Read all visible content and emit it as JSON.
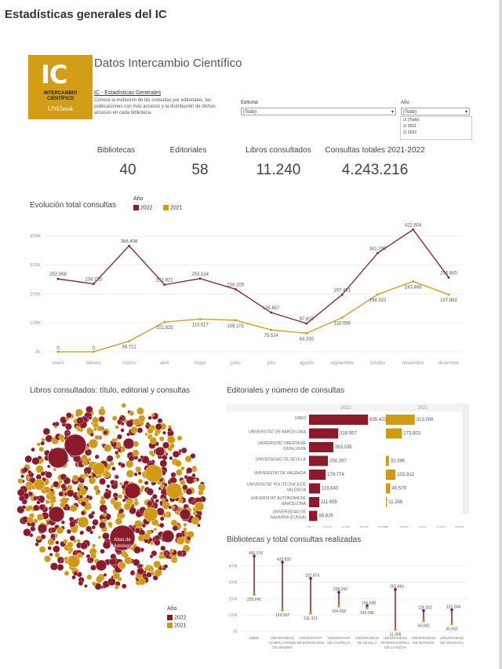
{
  "page_title": "Estadísticas generales del IC",
  "logo": {
    "big": "IC",
    "line1": "INTERCAMBIO",
    "line2": "CIENTÍFICO",
    "line3": "UNEbook"
  },
  "header": {
    "title": "Datos Intercambio Científico",
    "subtitle": "IC - Estadísticas Generales",
    "description": "Conoce la evolución de las consultas por editoriales, las publicaciones con más accesos y la distribución de dichos accesos en cada biblioteca."
  },
  "filters": {
    "editorial_label": "Editorial",
    "editorial_value": "(Todo)",
    "year_label": "Año",
    "year_value": "(Todo)",
    "year_options": [
      "(Todo)",
      "2021",
      "2022"
    ]
  },
  "kpis": [
    {
      "label": "Bibliotecas",
      "value": "40"
    },
    {
      "label": "Editoriales",
      "value": "58"
    },
    {
      "label": "Libros consultados",
      "value": "11.240"
    },
    {
      "label": "Consultas totales 2021-2022",
      "value": "4.243.216"
    }
  ],
  "colors": {
    "y2022": "#8b1a2b",
    "y2021": "#d09a14",
    "grid": "#eeeeee"
  },
  "line_chart": {
    "title": "Evolución total consultas",
    "legend_title": "Año",
    "legend": [
      "2022",
      "2021"
    ],
    "chart_data": {
      "type": "line",
      "categories": [
        "enero",
        "febrero",
        "marzo",
        "abril",
        "mayo",
        "junio",
        "julio",
        "agosto",
        "septiembre",
        "octubre",
        "noviembre",
        "diciembre"
      ],
      "yticks": [
        "0K",
        "100K",
        "200K",
        "300K",
        "400K"
      ],
      "ylim": [
        0,
        440000
      ],
      "series": [
        {
          "name": "2022",
          "values": [
            252068,
            234735,
            366408,
            231921,
            253124,
            216205,
            135657,
            97815,
            197401,
            341196,
            422604,
            256845
          ],
          "labels": [
            "252.068",
            "234.735",
            "366.408",
            "231.921",
            "253.124",
            "216.205",
            "135.657",
            "97.815",
            "197.401",
            "341.196",
            "422.604",
            "256.845"
          ]
        },
        {
          "name": "2021",
          "values": [
            0,
            0,
            36721,
            102925,
            113017,
            109101,
            75524,
            64330,
            118056,
            198322,
            243466,
            197882
          ],
          "labels": [
            "0",
            "0",
            "36.721",
            "102.925",
            "113.017",
            "109.101",
            "75.524",
            "64.330",
            "118.056",
            "198.322",
            "243.466",
            "197.882"
          ]
        }
      ]
    }
  },
  "bubble_chart": {
    "title": "Libros consultados: título, editorial y consultas",
    "highlight_label_1": "Atlas de",
    "highlight_label_2": "Histología",
    "legend_title": "Año",
    "legend": [
      "2022",
      "2021"
    ]
  },
  "bar_chart": {
    "title": "Editoriales y número de consultas",
    "col_2022": "2022",
    "col_2021": "2021",
    "chart_data": {
      "type": "bar",
      "categories": [
        "UNED",
        "UNIVERSITAT DE BARCELONA",
        "UNIVERSITAT OBERTA DE CATALUNYA",
        "UNIVERSIDAD DE SEVILLA",
        "UNIVERSITAT DE VALÈNCIA",
        "UNIVERSITAT POLITÈCNICA DE VALÈNCIA",
        "UNIVERSITAT AUTÒNOMA DE BARCELONA",
        "UNIVERSIDAD DE NAVARRA (EUNSA)"
      ],
      "series": [
        {
          "name": "2022",
          "values": [
            639423,
            316957,
            263335,
            204287,
            179774,
            119640,
            111655,
            88826
          ],
          "labels": [
            "639.423",
            "316.957",
            "263.335",
            "204.287",
            "179.774",
            "119.640",
            "111.655",
            "88.826"
          ]
        },
        {
          "name": "2021",
          "values": [
            313008,
            173803,
            0,
            32386,
            103912,
            46579,
            11286,
            0
          ],
          "labels": [
            "313.008",
            "173.803",
            "",
            "32.386",
            "103.912",
            "46.579",
            "11.286",
            ""
          ]
        }
      ],
      "xticks_2022": [
        "0K",
        "200K",
        "400K",
        "600K",
        "800K"
      ],
      "xticks_2021": [
        "0K",
        "200K",
        "400K",
        "600K",
        "800K"
      ]
    }
  },
  "dumbbell_chart": {
    "title": "Bibliotecas y total consultas realizadas",
    "chart_data": {
      "type": "bar",
      "categories": [
        "UNED",
        "UNIVERSIDAD COMPLUTENSE DE MADRID",
        "UNIVERSITAT DE BARCELONA",
        "UNIVERSITAT DE VALÈNCIA",
        "UNIVERSIDAD DE SEVILLA",
        "UNIVERSIDAD INTERNACIONAL DE LA RIOJA",
        "UNIVERSIDAD DE BURGOS",
        "UNIVERSIDAD DE GRANADA"
      ],
      "yticks": [
        "0K",
        "100K",
        "200K",
        "300K",
        "400K"
      ],
      "ylim": [
        0,
        480000
      ],
      "series": [
        {
          "name": "2022",
          "values": [
            460376,
            422832,
            322874,
            239260,
            156648,
            255883,
            126302,
            131064
          ],
          "labels": [
            "460.376",
            "422.832",
            "322.874",
            "239.260",
            "156.648",
            "255.883",
            "126.302",
            "131.064"
          ]
        },
        {
          "name": "2021",
          "values": [
            225641,
            129567,
            111321,
            154568,
            143096,
            11456,
            64082,
            45582
          ],
          "labels": [
            "225.641",
            "129.567",
            "111.321",
            "154.568",
            "143.096",
            "11.456",
            "64.082",
            "45.582"
          ]
        }
      ]
    }
  }
}
